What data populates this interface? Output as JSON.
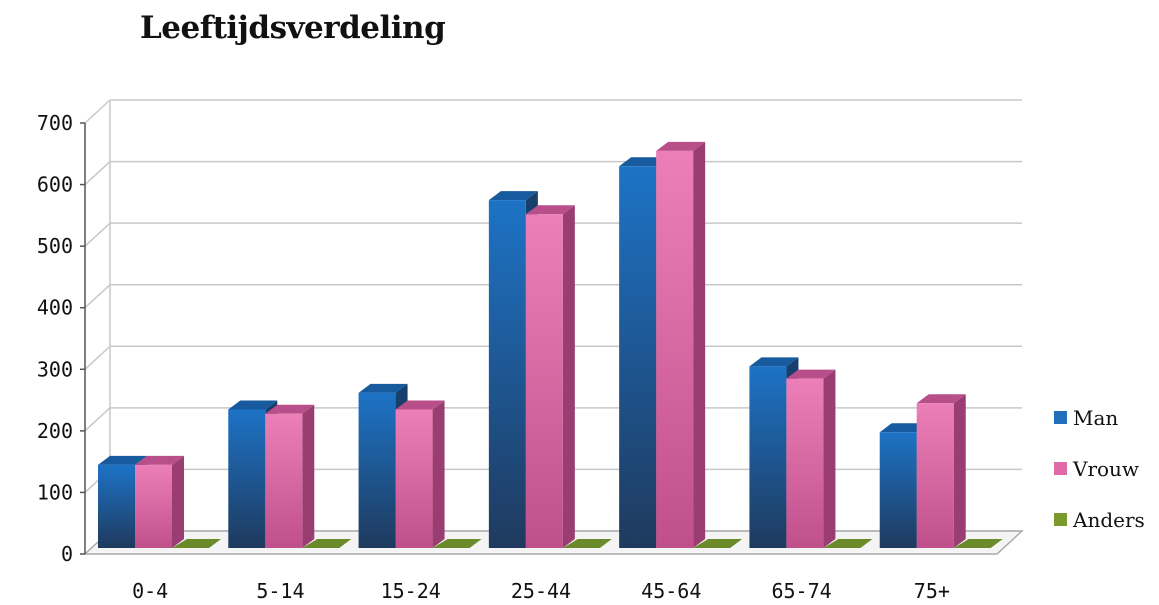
{
  "chart_data": {
    "type": "bar",
    "title": "Leeftijdsverdeling",
    "categories": [
      "0-4",
      "5-14",
      "15-24",
      "25-44",
      "45-64",
      "65-74",
      "75+"
    ],
    "series": [
      {
        "name": "Man",
        "color": "#1f6fba",
        "values": [
          135,
          225,
          252,
          565,
          620,
          295,
          188
        ]
      },
      {
        "name": "Vrouw",
        "color": "#e06aa8",
        "values": [
          135,
          218,
          225,
          542,
          645,
          275,
          235
        ]
      },
      {
        "name": "Anders",
        "color": "#7a9a2e",
        "values": [
          0,
          0,
          0,
          0,
          0,
          0,
          0
        ]
      }
    ],
    "ylim": [
      0,
      700
    ],
    "yticks": [
      0,
      100,
      200,
      300,
      400,
      500,
      600,
      700
    ],
    "grid": true,
    "legend_position": "right",
    "style": "3d-column"
  }
}
